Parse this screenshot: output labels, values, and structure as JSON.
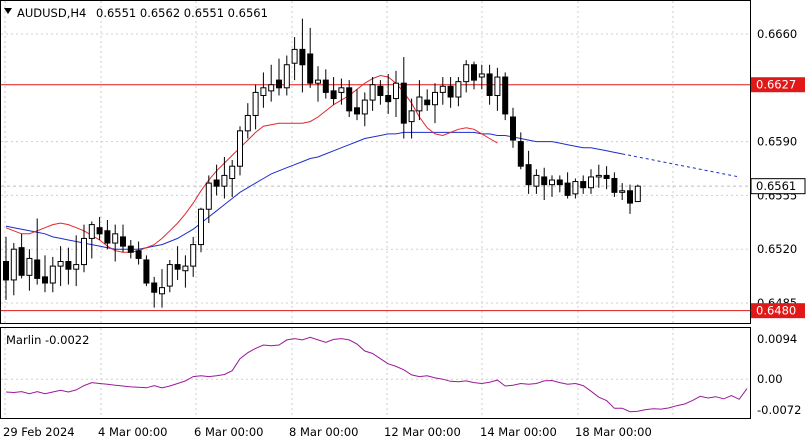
{
  "header": {
    "symbol_tf": "AUDUSD,H4",
    "ohlc": "0.6551 0.6562 0.6551 0.6561",
    "menu_arrow": "triangle-down-icon"
  },
  "indicator": {
    "label": "Marlin -0.0022",
    "ticks": [
      "0.0094",
      "0.00",
      "-0.0072"
    ],
    "tick_values": [
      0.0094,
      0.0,
      -0.0072
    ]
  },
  "price_axis": {
    "ticks": [
      "0.6660",
      "0.6590",
      "0.6555",
      "0.6520",
      "0.6485"
    ],
    "tick_values": [
      0.666,
      0.659,
      0.6555,
      0.652,
      0.6485
    ],
    "levels": [
      {
        "label": "0.6627",
        "value": 0.6627
      },
      {
        "label": "0.6480",
        "value": 0.648
      }
    ],
    "current": {
      "label": "0.6561",
      "value": 0.6561
    }
  },
  "time_axis": {
    "labels": [
      "29 Feb 2024",
      "4 Mar 00:00",
      "6 Mar 00:00",
      "8 Mar 00:00",
      "12 Mar 00:00",
      "14 Mar 00:00",
      "18 Mar 00:00"
    ]
  },
  "colors": {
    "level_line": "#e01818",
    "level_bg": "#e01818",
    "red_ma": "#e0282f",
    "blue_ma": "#1d2fc8",
    "marlin": "#9b1a9b",
    "grid": "#cfcfcf",
    "candle_border": "#000000"
  },
  "chart_data": {
    "type": "candlestick",
    "candles": [
      [
        0.6512,
        0.6528,
        0.6487,
        0.65
      ],
      [
        0.65,
        0.6524,
        0.649,
        0.652
      ],
      [
        0.6521,
        0.653,
        0.6501,
        0.6503
      ],
      [
        0.6503,
        0.652,
        0.6493,
        0.6514
      ],
      [
        0.6513,
        0.654,
        0.6497,
        0.6501
      ],
      [
        0.6502,
        0.6516,
        0.6492,
        0.6498
      ],
      [
        0.6498,
        0.6515,
        0.6492,
        0.6509
      ],
      [
        0.6509,
        0.6522,
        0.6496,
        0.6512
      ],
      [
        0.6512,
        0.6521,
        0.6497,
        0.6507
      ],
      [
        0.6507,
        0.6529,
        0.6496,
        0.651
      ],
      [
        0.651,
        0.6536,
        0.6505,
        0.6527
      ],
      [
        0.6527,
        0.6538,
        0.6514,
        0.6536
      ],
      [
        0.6534,
        0.6541,
        0.6526,
        0.653
      ],
      [
        0.6532,
        0.6539,
        0.652,
        0.6524
      ],
      [
        0.6524,
        0.6536,
        0.6512,
        0.653
      ],
      [
        0.6528,
        0.6536,
        0.6518,
        0.6522
      ],
      [
        0.6522,
        0.6526,
        0.6514,
        0.6518
      ],
      [
        0.6519,
        0.6525,
        0.651,
        0.6514
      ],
      [
        0.6513,
        0.6516,
        0.6496,
        0.6498
      ],
      [
        0.6498,
        0.6502,
        0.6482,
        0.6492
      ],
      [
        0.6491,
        0.6507,
        0.6482,
        0.6495
      ],
      [
        0.6496,
        0.6513,
        0.6492,
        0.651
      ],
      [
        0.651,
        0.6522,
        0.65,
        0.6507
      ],
      [
        0.6506,
        0.6516,
        0.6495,
        0.6509
      ],
      [
        0.6509,
        0.6528,
        0.6502,
        0.6523
      ],
      [
        0.6523,
        0.6547,
        0.6518,
        0.6546
      ],
      [
        0.6546,
        0.6568,
        0.6537,
        0.6563
      ],
      [
        0.6565,
        0.6575,
        0.6555,
        0.6561
      ],
      [
        0.6561,
        0.658,
        0.6553,
        0.6568
      ],
      [
        0.6566,
        0.6578,
        0.6554,
        0.6574
      ],
      [
        0.6574,
        0.66,
        0.6568,
        0.6597
      ],
      [
        0.6597,
        0.6615,
        0.6592,
        0.6607
      ],
      [
        0.6607,
        0.6627,
        0.6598,
        0.6622
      ],
      [
        0.662,
        0.6635,
        0.6612,
        0.6625
      ],
      [
        0.6623,
        0.664,
        0.6616,
        0.6627
      ],
      [
        0.663,
        0.6644,
        0.662,
        0.6625
      ],
      [
        0.6625,
        0.6646,
        0.662,
        0.664
      ],
      [
        0.6641,
        0.6658,
        0.663,
        0.665
      ],
      [
        0.665,
        0.667,
        0.6622,
        0.664
      ],
      [
        0.6647,
        0.6664,
        0.6625,
        0.6628
      ],
      [
        0.6628,
        0.6639,
        0.6616,
        0.663
      ],
      [
        0.663,
        0.6637,
        0.6618,
        0.6622
      ],
      [
        0.6623,
        0.6632,
        0.6614,
        0.6618
      ],
      [
        0.6622,
        0.6631,
        0.6614,
        0.6625
      ],
      [
        0.6625,
        0.663,
        0.6606,
        0.661
      ],
      [
        0.6612,
        0.6624,
        0.6604,
        0.6608
      ],
      [
        0.6608,
        0.6622,
        0.66,
        0.6617
      ],
      [
        0.6617,
        0.6632,
        0.661,
        0.6627
      ],
      [
        0.6626,
        0.663,
        0.6614,
        0.662
      ],
      [
        0.662,
        0.6634,
        0.6608,
        0.6616
      ],
      [
        0.6618,
        0.6636,
        0.6606,
        0.6628
      ],
      [
        0.6628,
        0.6645,
        0.6592,
        0.6602
      ],
      [
        0.6603,
        0.6618,
        0.6592,
        0.661
      ],
      [
        0.661,
        0.663,
        0.6604,
        0.6619
      ],
      [
        0.6617,
        0.6624,
        0.661,
        0.6614
      ],
      [
        0.6614,
        0.6628,
        0.6602,
        0.6622
      ],
      [
        0.6622,
        0.6632,
        0.6614,
        0.6626
      ],
      [
        0.6626,
        0.6632,
        0.6612,
        0.6619
      ],
      [
        0.6619,
        0.6632,
        0.6613,
        0.6629
      ],
      [
        0.6629,
        0.6643,
        0.6622,
        0.664
      ],
      [
        0.664,
        0.6642,
        0.6624,
        0.663
      ],
      [
        0.6632,
        0.664,
        0.6624,
        0.6634
      ],
      [
        0.6634,
        0.664,
        0.6614,
        0.662
      ],
      [
        0.662,
        0.6638,
        0.661,
        0.6632
      ],
      [
        0.6632,
        0.6635,
        0.6604,
        0.6608
      ],
      [
        0.6606,
        0.6612,
        0.6586,
        0.6591
      ],
      [
        0.659,
        0.6596,
        0.6572,
        0.6574
      ],
      [
        0.6575,
        0.6584,
        0.6556,
        0.6562
      ],
      [
        0.6561,
        0.6572,
        0.6556,
        0.6568
      ],
      [
        0.6567,
        0.6573,
        0.6552,
        0.6562
      ],
      [
        0.6562,
        0.6568,
        0.6554,
        0.6565
      ],
      [
        0.6565,
        0.6568,
        0.6557,
        0.6562
      ],
      [
        0.6563,
        0.657,
        0.6553,
        0.6555
      ],
      [
        0.6556,
        0.6566,
        0.6553,
        0.6564
      ],
      [
        0.6564,
        0.6568,
        0.6556,
        0.656
      ],
      [
        0.656,
        0.6572,
        0.6556,
        0.6567
      ],
      [
        0.6567,
        0.6575,
        0.656,
        0.6568
      ],
      [
        0.6568,
        0.6574,
        0.6559,
        0.6566
      ],
      [
        0.6566,
        0.657,
        0.6554,
        0.6557
      ],
      [
        0.6557,
        0.6563,
        0.6552,
        0.6558
      ],
      [
        0.6558,
        0.6562,
        0.6543,
        0.655
      ],
      [
        0.6551,
        0.6562,
        0.6551,
        0.6561
      ]
    ],
    "red_ma": [
      0.6534,
      0.6532,
      0.653,
      0.653,
      0.6532,
      0.6534,
      0.6536,
      0.6537,
      0.6536,
      0.6534,
      0.6532,
      0.6529,
      0.6526,
      0.6522,
      0.6519,
      0.6518,
      0.6518,
      0.6519,
      0.6521,
      0.6523,
      0.6527,
      0.6532,
      0.6537,
      0.6543,
      0.655,
      0.6558,
      0.6565,
      0.6571,
      0.6576,
      0.6581,
      0.6586,
      0.6591,
      0.6596,
      0.66,
      0.6601,
      0.6602,
      0.6602,
      0.6602,
      0.6602,
      0.6603,
      0.6606,
      0.661,
      0.6614,
      0.6617,
      0.662,
      0.6624,
      0.6628,
      0.6631,
      0.6633,
      0.6632,
      0.6628,
      0.6622,
      0.6615,
      0.6606,
      0.6599,
      0.6595,
      0.6594,
      0.6596,
      0.6598,
      0.6599,
      0.6598,
      0.6595,
      0.6592,
      0.6589
    ],
    "blue_ma": [
      0.6535,
      0.6534,
      0.6533,
      0.6532,
      0.6531,
      0.653,
      0.6528,
      0.6527,
      0.6526,
      0.6525,
      0.6524,
      0.6523,
      0.6522,
      0.6521,
      0.652,
      0.652,
      0.652,
      0.652,
      0.6521,
      0.6522,
      0.6523,
      0.6525,
      0.6527,
      0.653,
      0.6533,
      0.6537,
      0.6541,
      0.6545,
      0.6549,
      0.6553,
      0.6557,
      0.656,
      0.6563,
      0.6566,
      0.6569,
      0.6571,
      0.6573,
      0.6575,
      0.6577,
      0.6579,
      0.658,
      0.6582,
      0.6584,
      0.6586,
      0.6588,
      0.659,
      0.6592,
      0.6593,
      0.6594,
      0.6595,
      0.6595,
      0.6596,
      0.6596,
      0.6596,
      0.6596,
      0.6596,
      0.6596,
      0.6596,
      0.6596,
      0.6596,
      0.6596,
      0.6595,
      0.6595,
      0.6594,
      0.6594,
      0.6593,
      0.6592,
      0.6591,
      0.659,
      0.659,
      0.659,
      0.6589,
      0.6588,
      0.6587,
      0.6586,
      0.6586,
      0.6585,
      0.6584,
      0.6583,
      0.6582,
      0.6581,
      0.658,
      0.6579,
      0.6578,
      0.6577,
      0.6576,
      0.6575,
      0.6574,
      0.6573,
      0.6572,
      0.6571,
      0.657,
      0.6569,
      0.6568,
      0.6567
    ],
    "blue_ma_solid_count": 80,
    "marlin": [
      -0.003,
      -0.0031,
      -0.0029,
      -0.0034,
      -0.0029,
      -0.0034,
      -0.003,
      -0.0026,
      -0.003,
      -0.0025,
      -0.0015,
      -0.0008,
      -0.001,
      -0.0012,
      -0.0014,
      -0.0016,
      -0.0018,
      -0.0019,
      -0.002,
      -0.0015,
      -0.002,
      -0.0016,
      -0.001,
      -0.0004,
      0.0006,
      0.0008,
      0.0006,
      0.0008,
      0.0011,
      0.002,
      0.0048,
      0.0062,
      0.0072,
      0.008,
      0.0078,
      0.008,
      0.0092,
      0.0095,
      0.0092,
      0.0098,
      0.0092,
      0.0086,
      0.0093,
      0.0095,
      0.0092,
      0.0082,
      0.0066,
      0.006,
      0.0048,
      0.0036,
      0.003,
      0.0022,
      0.001,
      0.0006,
      0.0008,
      0.0003,
      0.0,
      -0.0005,
      -0.0006,
      -0.0004,
      -0.0008,
      -0.001,
      -0.0007,
      -0.0002,
      -0.0016,
      -0.0014,
      -0.001,
      -0.0012,
      -0.001,
      -0.0004,
      -0.0003,
      -0.0008,
      -0.0012,
      -0.001,
      -0.0015,
      -0.0028,
      -0.0042,
      -0.005,
      -0.0068,
      -0.0068,
      -0.0076,
      -0.0075,
      -0.0071,
      -0.0069,
      -0.007,
      -0.0067,
      -0.0062,
      -0.0058,
      -0.005,
      -0.004,
      -0.0044,
      -0.0041,
      -0.0046,
      -0.0038,
      -0.0047,
      -0.0022
    ]
  }
}
